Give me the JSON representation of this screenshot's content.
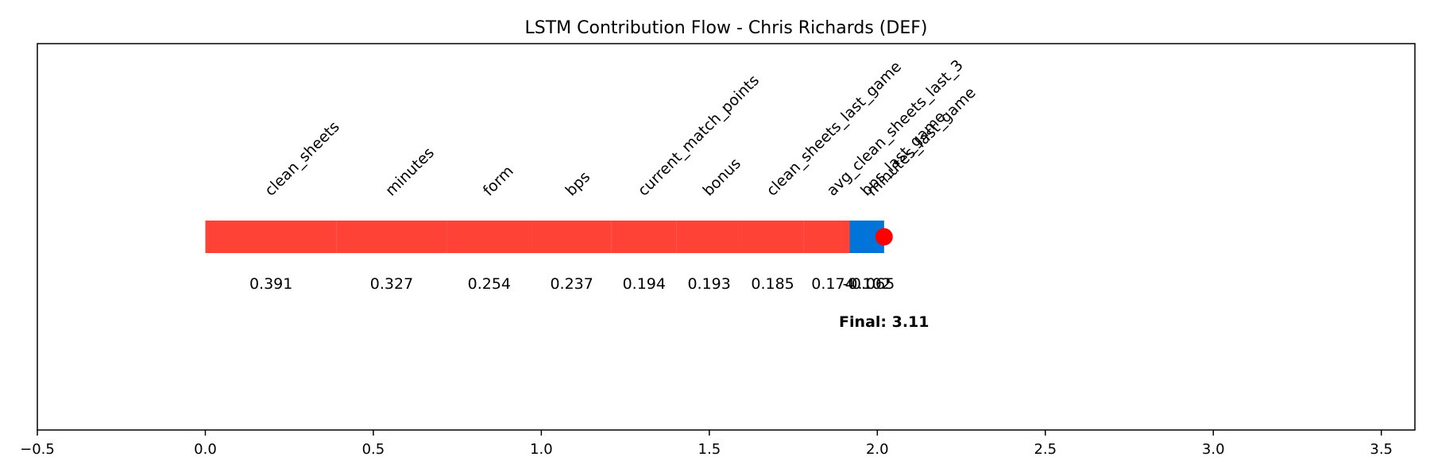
{
  "chart_data": {
    "type": "bar",
    "title": "LSTM Contribution Flow - Chris Richards (DEF)",
    "xlim": [
      -0.5,
      3.6
    ],
    "x_ticks": [
      -0.5,
      0.0,
      0.5,
      1.0,
      1.5,
      2.0,
      2.5,
      3.0,
      3.5
    ],
    "x_tick_labels": [
      "−0.5",
      "0.0",
      "0.5",
      "1.0",
      "1.5",
      "2.0",
      "2.5",
      "3.0",
      "3.5"
    ],
    "grid": false,
    "colors": {
      "positive": "#ff4136",
      "negative": "#0074d9",
      "marker": "#ff0000"
    },
    "contributions": [
      {
        "feature": "clean_sheets",
        "value": 0.391,
        "label": "0.391",
        "sign": "positive"
      },
      {
        "feature": "minutes",
        "value": 0.327,
        "label": "0.327",
        "sign": "positive"
      },
      {
        "feature": "form",
        "value": 0.254,
        "label": "0.254",
        "sign": "positive"
      },
      {
        "feature": "bps",
        "value": 0.237,
        "label": "0.237",
        "sign": "positive"
      },
      {
        "feature": "current_match_points",
        "value": 0.194,
        "label": "0.194",
        "sign": "positive"
      },
      {
        "feature": "bonus",
        "value": 0.193,
        "label": "0.193",
        "sign": "positive"
      },
      {
        "feature": "clean_sheets_last_game",
        "value": 0.185,
        "label": "0.185",
        "sign": "positive"
      },
      {
        "feature": "avg_clean_sheets_last_3",
        "value": 0.174,
        "label": "0.174",
        "sign": "positive"
      },
      {
        "feature": "minutes_last_game",
        "value": 0.065,
        "label": "0.065",
        "sign": "positive"
      },
      {
        "feature": "bps_last_game",
        "value": -0.102,
        "label": "-0.102",
        "sign": "negative"
      }
    ],
    "final_label": "Final: 3.11"
  }
}
